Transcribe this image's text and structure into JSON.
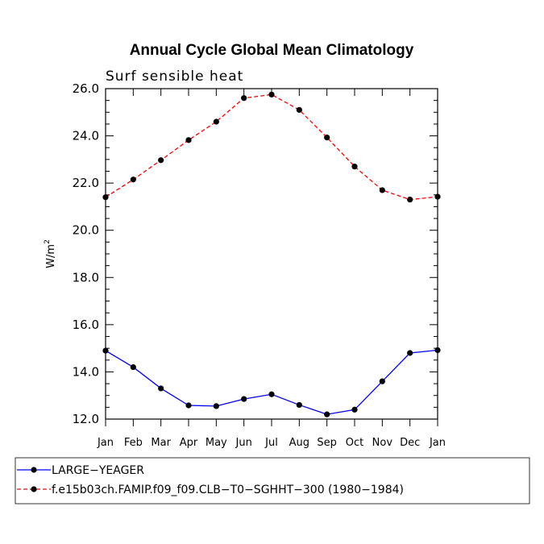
{
  "chart_data": {
    "type": "line",
    "title": "Annual Cycle Global Mean Climatology",
    "subtitle": "Surf sensible heat",
    "ylabel_base": "W/m",
    "ylabel_sup": "2",
    "ylim": [
      12.0,
      26.0
    ],
    "yticks": [
      "12.0",
      "14.0",
      "16.0",
      "18.0",
      "20.0",
      "22.0",
      "24.0",
      "26.0"
    ],
    "categories": [
      "Jan",
      "Feb",
      "Mar",
      "Apr",
      "May",
      "Jun",
      "Jul",
      "Aug",
      "Sep",
      "Oct",
      "Nov",
      "Dec",
      "Jan"
    ],
    "grid": false,
    "legend_position": "bottom-left",
    "series": [
      {
        "name": "LARGE−YEAGER",
        "color": "#0000ff",
        "style": "solid",
        "values": [
          14.9,
          14.2,
          13.3,
          12.58,
          12.55,
          12.85,
          13.05,
          12.6,
          12.2,
          12.4,
          13.6,
          14.8,
          14.92
        ]
      },
      {
        "name": "f.e15b03ch.FAMIP.f09_f09.CLB−T0−SGHHT−300 (1980−1984)",
        "color": "#ff0000",
        "style": "dashed",
        "values": [
          21.4,
          22.15,
          22.97,
          23.82,
          24.6,
          25.6,
          25.75,
          25.1,
          23.93,
          22.7,
          21.7,
          21.3,
          21.42
        ]
      }
    ]
  }
}
